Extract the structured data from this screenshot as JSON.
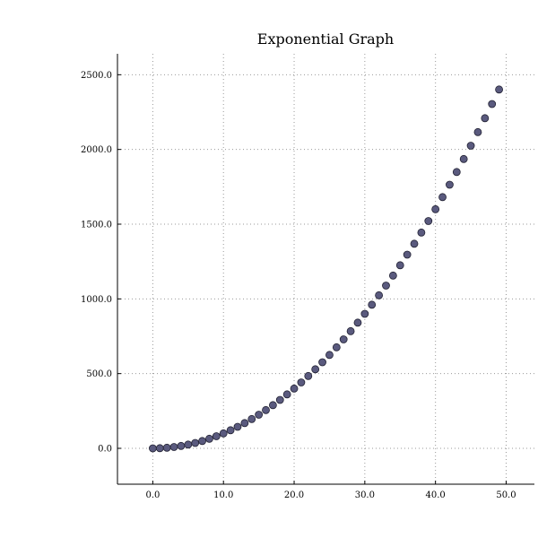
{
  "chart_data": {
    "type": "scatter",
    "title": "Exponential Graph",
    "xlabel": "",
    "ylabel": "",
    "xlim": [
      -5,
      54
    ],
    "ylim": [
      -240,
      2640
    ],
    "xticks": [
      0,
      10,
      20,
      30,
      40,
      50
    ],
    "xtick_labels": [
      "0.0",
      "10.0",
      "20.0",
      "30.0",
      "40.0",
      "50.0"
    ],
    "yticks": [
      0,
      500,
      1000,
      1500,
      2000,
      2500
    ],
    "ytick_labels": [
      "0.0",
      "500.0",
      "1000.0",
      "1500.0",
      "2000.0",
      "2500.0"
    ],
    "grid": true,
    "marker_color": "#5a5a7e",
    "series": [
      {
        "x": [
          0,
          1,
          2,
          3,
          4,
          5,
          6,
          7,
          8,
          9,
          10,
          11,
          12,
          13,
          14,
          15,
          16,
          17,
          18,
          19,
          20,
          21,
          22,
          23,
          24,
          25,
          26,
          27,
          28,
          29,
          30,
          31,
          32,
          33,
          34,
          35,
          36,
          37,
          38,
          39,
          40,
          41,
          42,
          43,
          44,
          45,
          46,
          47,
          48,
          49
        ],
        "y": [
          0,
          1,
          4,
          9,
          16,
          25,
          36,
          49,
          64,
          81,
          100,
          121,
          144,
          169,
          196,
          225,
          256,
          289,
          324,
          361,
          400,
          441,
          484,
          529,
          576,
          625,
          676,
          729,
          784,
          841,
          900,
          961,
          1024,
          1089,
          1156,
          1225,
          1296,
          1369,
          1444,
          1521,
          1600,
          1681,
          1764,
          1849,
          1936,
          2025,
          2116,
          2209,
          2304,
          2401
        ]
      }
    ]
  }
}
